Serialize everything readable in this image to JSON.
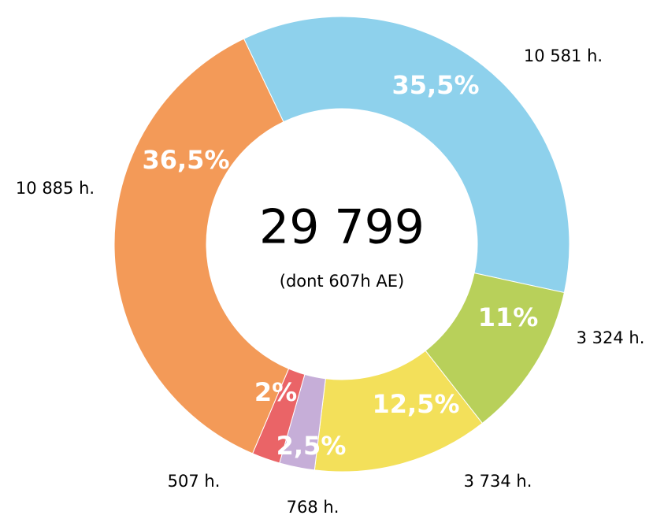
{
  "chart_data": {
    "type": "donut",
    "center_title": "29 799",
    "center_subtitle": "(dont 607h AE)",
    "categories": [
      "10 581 h.",
      "3 324 h.",
      "3 734 h.",
      "768 h.",
      "507 h.",
      "10 885 h."
    ],
    "values": [
      35.5,
      11,
      12.5,
      2.5,
      2,
      36.5
    ],
    "value_labels": [
      "35,5%",
      "11%",
      "12,5%",
      "2,5%",
      "2%",
      "36,5%"
    ],
    "colors": [
      "#8ed1ec",
      "#b8d05a",
      "#f3e05a",
      "#c6aed8",
      "#ea6467",
      "#f39a58"
    ]
  }
}
